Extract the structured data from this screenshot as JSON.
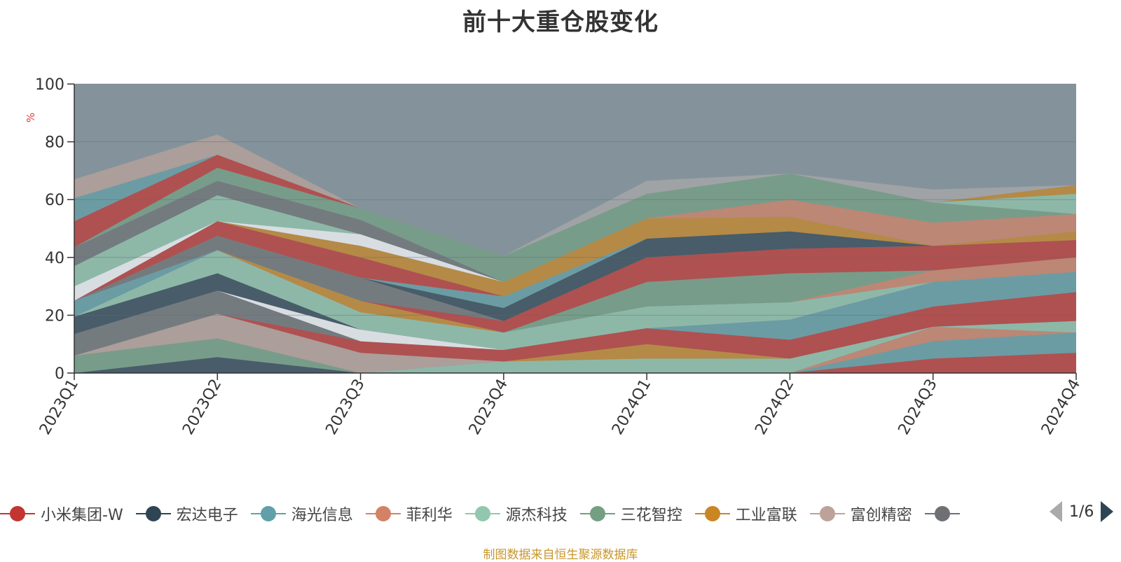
{
  "title": "前十大重仓股变化",
  "source_note": "制图数据来自恒生聚源数据库",
  "pager_text": "1/6",
  "legend": [
    {
      "name": "小米集团-W",
      "color": "#c23531"
    },
    {
      "name": "宏达电子",
      "color": "#2f4554"
    },
    {
      "name": "海光信息",
      "color": "#61a0a8"
    },
    {
      "name": "菲利华",
      "color": "#d48265"
    },
    {
      "name": "源杰科技",
      "color": "#91c7ae"
    },
    {
      "name": "三花智控",
      "color": "#749f83"
    },
    {
      "name": "工业富联",
      "color": "#ca8622"
    },
    {
      "name": "富创精密",
      "color": "#bda29a"
    },
    {
      "name": "",
      "color": "#6e7074"
    }
  ],
  "chart_data": {
    "type": "area",
    "stacked": true,
    "title": "前十大重仓股变化",
    "ylabel": "%",
    "ylim": [
      0,
      100
    ],
    "yticks": [
      0,
      20,
      40,
      60,
      80,
      100
    ],
    "grid": true,
    "categories": [
      "2023Q1",
      "2023Q2",
      "2023Q3",
      "2023Q4",
      "2024Q1",
      "2024Q2",
      "2024Q3",
      "2024Q4"
    ],
    "background_color": "#84939b",
    "bands": [
      {
        "color": "#c23531",
        "opacity": 0.7,
        "values": [
          0,
          0,
          0,
          0,
          0,
          0,
          5,
          7
        ]
      },
      {
        "color": "#61a0a8",
        "opacity": 0.7,
        "values": [
          0,
          0,
          0,
          0,
          0,
          0,
          6,
          7
        ]
      },
      {
        "color": "#d48265",
        "opacity": 0.7,
        "values": [
          0,
          0,
          0,
          0,
          0,
          0,
          5,
          0
        ]
      },
      {
        "color": "#91c7ae",
        "opacity": 0.7,
        "values": [
          0,
          0,
          0,
          4,
          5,
          5,
          0,
          4
        ]
      },
      {
        "color": "#2f4554",
        "opacity": 0.7,
        "values": [
          0,
          5.5,
          0,
          0,
          0,
          0,
          0,
          0
        ]
      },
      {
        "color": "#749f83",
        "opacity": 0.7,
        "values": [
          6,
          6.5,
          0,
          0,
          0,
          0,
          0,
          0
        ]
      },
      {
        "color": "#bda29a",
        "opacity": 0.7,
        "values": [
          0,
          8.5,
          7,
          0,
          0,
          0,
          0,
          0
        ]
      },
      {
        "color": "#ca8622",
        "opacity": 0.7,
        "values": [
          0,
          0,
          0,
          0,
          5,
          0,
          0,
          0
        ]
      },
      {
        "color": "#c23531",
        "opacity": 0.7,
        "values": [
          0,
          0,
          4,
          4,
          5.5,
          6.5,
          7,
          10
        ]
      },
      {
        "color": "#6e7074",
        "opacity": 0.7,
        "values": [
          7.5,
          8,
          0,
          0,
          0,
          0,
          0,
          0
        ]
      },
      {
        "color": "#e1e5ea",
        "opacity": 0.9,
        "values": [
          0,
          0,
          4,
          0,
          0,
          0,
          0,
          0
        ]
      },
      {
        "color": "#2f4554",
        "opacity": 0.7,
        "values": [
          6,
          6,
          0,
          0,
          0,
          0,
          0,
          0
        ]
      },
      {
        "color": "#61a0a8",
        "opacity": 0.7,
        "values": [
          0,
          0,
          0,
          0,
          0,
          7,
          8.5,
          7
        ]
      },
      {
        "color": "#91c7ae",
        "opacity": 0.7,
        "values": [
          0,
          8,
          6,
          6,
          7.5,
          6,
          0,
          0
        ]
      },
      {
        "color": "#ca8622",
        "opacity": 0.7,
        "values": [
          0,
          0,
          4,
          0,
          0,
          0,
          0,
          0
        ]
      },
      {
        "color": "#d48265",
        "opacity": 0.7,
        "values": [
          0,
          0,
          0,
          0,
          0,
          0,
          4,
          5
        ]
      },
      {
        "color": "#749f83",
        "opacity": 0.7,
        "values": [
          0,
          0,
          0,
          0,
          8.5,
          10,
          0,
          0
        ]
      },
      {
        "color": "#61a0a8",
        "opacity": 0.7,
        "values": [
          5.5,
          0,
          0,
          0,
          0,
          0,
          0,
          0
        ]
      },
      {
        "color": "#c23531",
        "opacity": 0.7,
        "values": [
          0,
          0,
          0,
          4,
          8.5,
          8.5,
          8.5,
          6
        ]
      },
      {
        "color": "#6e7074",
        "opacity": 0.7,
        "values": [
          0,
          5,
          8,
          0,
          0,
          0,
          0,
          0
        ]
      },
      {
        "color": "#2f4554",
        "opacity": 0.7,
        "values": [
          0,
          0,
          0,
          4.5,
          6.5,
          6,
          0,
          0
        ]
      },
      {
        "color": "#61a0a8",
        "opacity": 0.7,
        "values": [
          0,
          0,
          0,
          4,
          0,
          0,
          0,
          0
        ]
      },
      {
        "color": "#c23531",
        "opacity": 0.7,
        "values": [
          0,
          5,
          7,
          0,
          0,
          0,
          0,
          0
        ]
      },
      {
        "color": "#ca8622",
        "opacity": 0.7,
        "values": [
          0,
          0,
          4,
          5,
          7,
          5,
          0,
          3
        ]
      },
      {
        "color": "#e1e5ea",
        "opacity": 0.9,
        "values": [
          5,
          0,
          4,
          0,
          0,
          0,
          0,
          0
        ]
      },
      {
        "color": "#91c7ae",
        "opacity": 0.7,
        "values": [
          7,
          9,
          0,
          0,
          0,
          0,
          0,
          0
        ]
      },
      {
        "color": "#d48265",
        "opacity": 0.7,
        "values": [
          0,
          0,
          0,
          0,
          0,
          6,
          8,
          6
        ]
      },
      {
        "color": "#6e7074",
        "opacity": 0.7,
        "values": [
          6.5,
          5,
          5,
          0,
          0,
          0,
          0,
          0
        ]
      },
      {
        "color": "#749f83",
        "opacity": 0.7,
        "values": [
          0,
          4.5,
          4,
          9,
          8.5,
          9,
          7,
          0
        ]
      },
      {
        "color": "#c23531",
        "opacity": 0.7,
        "values": [
          9,
          4.5,
          0,
          0,
          0,
          0,
          0,
          0
        ]
      },
      {
        "color": "#61a0a8",
        "opacity": 0.7,
        "values": [
          8,
          0,
          0,
          0,
          0,
          0,
          0,
          0
        ]
      },
      {
        "color": "#bda29a",
        "opacity": 0.7,
        "values": [
          6.5,
          7,
          0,
          0,
          0,
          0,
          0,
          0
        ]
      },
      {
        "color": "#91c7ae",
        "opacity": 0.7,
        "values": [
          0,
          0,
          0,
          0,
          0,
          0,
          0,
          7
        ]
      },
      {
        "color": "#ca8622",
        "opacity": 0.7,
        "values": [
          0,
          0,
          0,
          0,
          0,
          0,
          0,
          3
        ]
      },
      {
        "color": "#a4a6a8",
        "opacity": 0.85,
        "values": [
          0,
          0,
          0,
          0,
          4.5,
          0,
          4.5,
          0
        ]
      }
    ]
  }
}
